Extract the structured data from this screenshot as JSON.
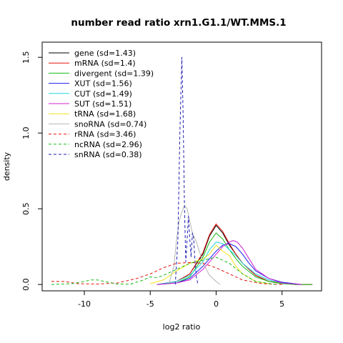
{
  "chart_data": {
    "type": "line",
    "title": "number read ratio xrn1.G1.1/WT.MMS.1",
    "xlabel": "log2 ratio",
    "ylabel": "density",
    "xlim": [
      -13.2,
      8.0
    ],
    "ylim": [
      -0.042,
      1.6
    ],
    "xticks": [
      -10,
      -5,
      0,
      5
    ],
    "xtick_labels": [
      "-10",
      "-5",
      "0",
      "5"
    ],
    "yticks": [
      0.0,
      0.5,
      1.0,
      1.5
    ],
    "ytick_labels": [
      "0.0",
      "0.5",
      "1.0",
      "1.5"
    ],
    "grid": false,
    "legend_position": "top-left",
    "series": [
      {
        "name": "gene (sd=1.43)",
        "color": "#000000",
        "dash": "solid",
        "x": [
          -4.5,
          -3,
          -2,
          -1,
          -0.5,
          0,
          0.5,
          1,
          1.5,
          2,
          3,
          4,
          5,
          6,
          7.3
        ],
        "y": [
          0,
          0.02,
          0.07,
          0.2,
          0.32,
          0.39,
          0.34,
          0.26,
          0.2,
          0.14,
          0.06,
          0.02,
          0.01,
          0,
          0
        ]
      },
      {
        "name": "mRNA (sd=1.4)",
        "color": "#e8140f",
        "dash": "solid",
        "x": [
          -4.5,
          -3,
          -2,
          -1,
          -0.5,
          0,
          0.5,
          1,
          1.5,
          2,
          3,
          4,
          5,
          6,
          7.3
        ],
        "y": [
          0,
          0.02,
          0.07,
          0.21,
          0.33,
          0.4,
          0.35,
          0.27,
          0.2,
          0.14,
          0.06,
          0.02,
          0.01,
          0,
          0
        ]
      },
      {
        "name": "divergent (sd=1.39)",
        "color": "#16bc16",
        "dash": "solid",
        "x": [
          -4.5,
          -3,
          -2,
          -1,
          -0.5,
          0,
          0.5,
          1,
          1.5,
          2,
          3,
          4,
          5,
          6,
          7.3
        ],
        "y": [
          0,
          0.01,
          0.05,
          0.18,
          0.28,
          0.34,
          0.3,
          0.23,
          0.17,
          0.12,
          0.05,
          0.02,
          0.005,
          0,
          0
        ]
      },
      {
        "name": "XUT (sd=1.56)",
        "color": "#1c1cf0",
        "dash": "solid",
        "x": [
          -4.5,
          -3,
          -2,
          -1,
          0,
          0.5,
          1,
          1.5,
          2,
          2.5,
          3,
          4,
          5,
          6.5
        ],
        "y": [
          0,
          0.01,
          0.04,
          0.12,
          0.22,
          0.26,
          0.27,
          0.25,
          0.2,
          0.14,
          0.09,
          0.04,
          0.015,
          0
        ]
      },
      {
        "name": "CUT (sd=1.49)",
        "color": "#22d8e0",
        "dash": "solid",
        "x": [
          -4.5,
          -3,
          -2,
          -1,
          -0.5,
          0,
          0.5,
          1,
          1.5,
          2,
          3,
          4,
          5,
          6.5
        ],
        "y": [
          0,
          0.02,
          0.06,
          0.15,
          0.23,
          0.28,
          0.27,
          0.23,
          0.19,
          0.14,
          0.07,
          0.03,
          0.01,
          0
        ]
      },
      {
        "name": "SUT (sd=1.51)",
        "color": "#d11fd1",
        "dash": "solid",
        "x": [
          -4.5,
          -3,
          -2,
          -1,
          0,
          0.5,
          1,
          1.3,
          1.6,
          2,
          2.5,
          3,
          4,
          5,
          6.5
        ],
        "y": [
          0,
          0.01,
          0.03,
          0.1,
          0.2,
          0.25,
          0.28,
          0.29,
          0.28,
          0.24,
          0.17,
          0.1,
          0.04,
          0.01,
          0
        ]
      },
      {
        "name": "tRNA (sd=1.68)",
        "color": "#f2e21d",
        "dash": "solid",
        "x": [
          -5,
          -4,
          -3,
          -2,
          -1,
          -0.5,
          0,
          0.5,
          1,
          1.5,
          2,
          3,
          4
        ],
        "y": [
          0.005,
          0.03,
          0.09,
          0.14,
          0.17,
          0.2,
          0.26,
          0.22,
          0.19,
          0.12,
          0.07,
          0.02,
          0.005
        ]
      },
      {
        "name": "snoRNA (sd=0.74)",
        "color": "#b4b4b4",
        "dash": "solid",
        "x": [
          -3.6,
          -3.2,
          -3,
          -2.8,
          -2.6,
          -2.4,
          -2.2,
          -2,
          -1.8,
          -1.5,
          -1.2,
          -1,
          -0.5,
          0,
          0.3
        ],
        "y": [
          0,
          0.12,
          0.3,
          0.42,
          0.48,
          0.52,
          0.5,
          0.42,
          0.34,
          0.28,
          0.2,
          0.14,
          0.06,
          0.02,
          0
        ]
      },
      {
        "name": "rRNA (sd=3.46)",
        "color": "#e8140f",
        "dash": "dashed",
        "x": [
          -12.5,
          -11.5,
          -10.5,
          -9,
          -7.5,
          -6,
          -5,
          -4,
          -3,
          -2,
          -1,
          0,
          1,
          2,
          3.5,
          5
        ],
        "y": [
          0.02,
          0.02,
          0.005,
          0.003,
          0.01,
          0.04,
          0.07,
          0.11,
          0.14,
          0.145,
          0.14,
          0.11,
          0.07,
          0.03,
          0.005,
          0
        ]
      },
      {
        "name": "ncRNA (sd=2.96)",
        "color": "#16bc16",
        "dash": "dashed",
        "x": [
          -12.5,
          -11,
          -10.3,
          -9.5,
          -9,
          -8.5,
          -7.5,
          -6.5,
          -5.5,
          -5,
          -4.5,
          -4,
          -3,
          -2,
          -1,
          0,
          1,
          2,
          3,
          4.5
        ],
        "y": [
          0,
          0.005,
          0.015,
          0.03,
          0.03,
          0.02,
          0.003,
          0.002,
          0.03,
          0.05,
          0.045,
          0.06,
          0.1,
          0.14,
          0.16,
          0.18,
          0.14,
          0.07,
          0.02,
          0
        ]
      },
      {
        "name": "snRNA (sd=0.38)",
        "color": "#1c1cb4",
        "dash": "dashed",
        "x": [
          -3.1,
          -2.9,
          -2.75,
          -2.6,
          -2.5,
          -2.4,
          -2.3,
          -2.2,
          -2.1,
          -2,
          -1.9,
          -1.8,
          -1.7,
          -1.6,
          -1.5,
          -1.4,
          -1.3
        ],
        "y": [
          0,
          0.3,
          1.0,
          1.5,
          1.1,
          0.5,
          0.15,
          0.3,
          0.45,
          0.3,
          0.18,
          0.34,
          0.3,
          0.15,
          0.05,
          0.01,
          0
        ]
      }
    ]
  }
}
